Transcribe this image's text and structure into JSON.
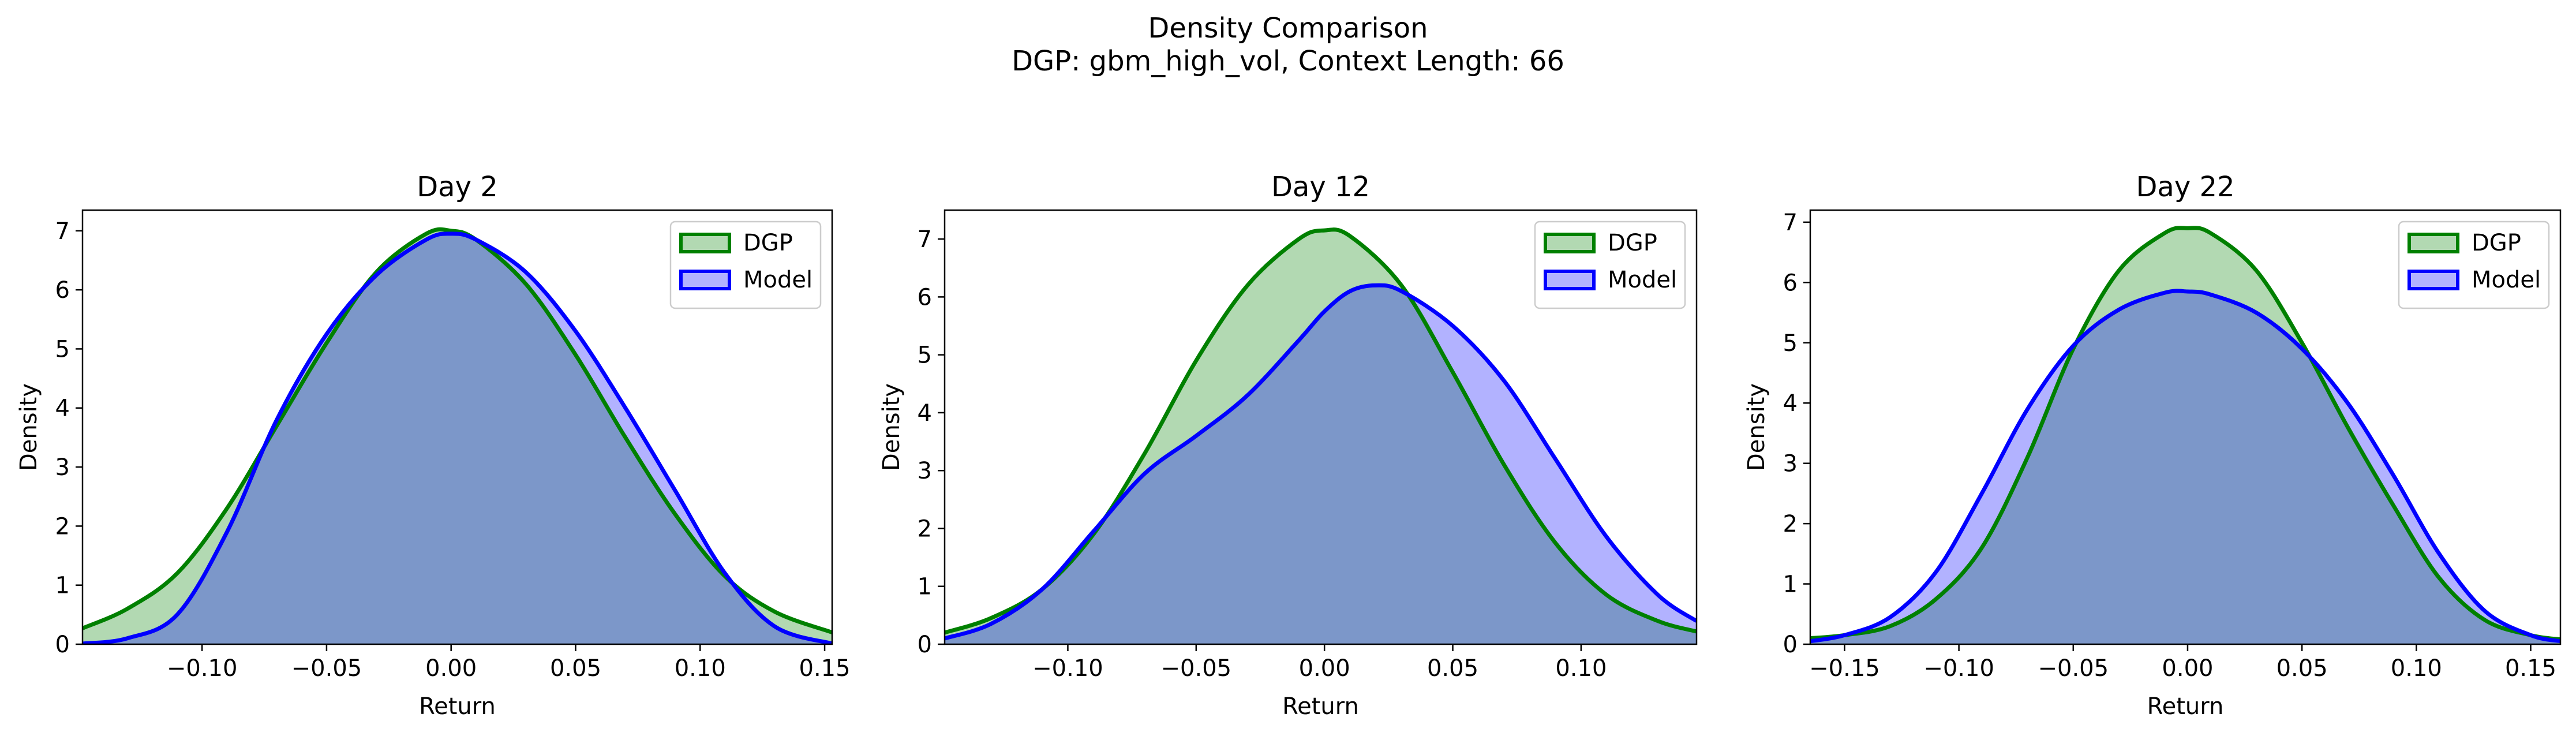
{
  "figure": {
    "title_line1": "Density Comparison",
    "title_line2": "DGP: gbm_high_vol, Context Length: 66"
  },
  "chart_data": [
    {
      "type": "area",
      "title": "Day 2",
      "xlabel": "Return",
      "ylabel": "Density",
      "xlim": [
        -0.148,
        0.153
      ],
      "ylim": [
        0,
        7.35
      ],
      "xticks": [
        -0.1,
        -0.05,
        0.0,
        0.05,
        0.1,
        0.15
      ],
      "xtick_labels": [
        "−0.10",
        "−0.05",
        "0.00",
        "0.05",
        "0.10",
        "0.15"
      ],
      "yticks": [
        0,
        1,
        2,
        3,
        4,
        5,
        6,
        7
      ],
      "ytick_labels": [
        "0",
        "1",
        "2",
        "3",
        "4",
        "5",
        "6",
        "7"
      ],
      "legend": "top-right",
      "grid": false,
      "series": [
        {
          "name": "DGP",
          "color": "#008000",
          "fill": "#008000",
          "fill_alpha": 0.3,
          "x": [
            -0.148,
            -0.13,
            -0.11,
            -0.09,
            -0.07,
            -0.05,
            -0.03,
            -0.01,
            0.0,
            0.01,
            0.03,
            0.05,
            0.07,
            0.09,
            0.11,
            0.13,
            0.153
          ],
          "y": [
            0.27,
            0.6,
            1.2,
            2.3,
            3.7,
            5.1,
            6.3,
            6.95,
            7.0,
            6.85,
            6.1,
            4.9,
            3.5,
            2.2,
            1.15,
            0.55,
            0.2
          ]
        },
        {
          "name": "Model",
          "color": "#0000ff",
          "fill": "#0000ff",
          "fill_alpha": 0.3,
          "x": [
            -0.148,
            -0.13,
            -0.11,
            -0.09,
            -0.07,
            -0.05,
            -0.03,
            -0.01,
            0.0,
            0.01,
            0.03,
            0.05,
            0.07,
            0.09,
            0.11,
            0.13,
            0.153
          ],
          "y": [
            0.01,
            0.1,
            0.5,
            1.9,
            3.8,
            5.25,
            6.25,
            6.85,
            6.95,
            6.85,
            6.3,
            5.3,
            4.0,
            2.6,
            1.2,
            0.3,
            0.01
          ]
        }
      ]
    },
    {
      "type": "area",
      "title": "Day 12",
      "xlabel": "Return",
      "ylabel": "Density",
      "xlim": [
        -0.148,
        0.145
      ],
      "ylim": [
        0,
        7.5
      ],
      "xticks": [
        -0.1,
        -0.05,
        0.0,
        0.05,
        0.1
      ],
      "xtick_labels": [
        "−0.10",
        "−0.05",
        "0.00",
        "0.05",
        "0.10"
      ],
      "yticks": [
        0,
        1,
        2,
        3,
        4,
        5,
        6,
        7
      ],
      "ytick_labels": [
        "0",
        "1",
        "2",
        "3",
        "4",
        "5",
        "6",
        "7"
      ],
      "legend": "top-right",
      "grid": false,
      "series": [
        {
          "name": "DGP",
          "color": "#008000",
          "fill": "#008000",
          "fill_alpha": 0.3,
          "x": [
            -0.148,
            -0.13,
            -0.11,
            -0.09,
            -0.07,
            -0.05,
            -0.03,
            -0.01,
            0.0,
            0.01,
            0.03,
            0.05,
            0.07,
            0.09,
            0.11,
            0.13,
            0.145
          ],
          "y": [
            0.2,
            0.45,
            0.95,
            1.9,
            3.3,
            4.9,
            6.2,
            7.0,
            7.15,
            7.05,
            6.2,
            4.7,
            3.1,
            1.75,
            0.85,
            0.4,
            0.22
          ]
        },
        {
          "name": "Model",
          "color": "#0000ff",
          "fill": "#0000ff",
          "fill_alpha": 0.3,
          "x": [
            -0.148,
            -0.13,
            -0.11,
            -0.09,
            -0.07,
            -0.05,
            -0.03,
            -0.01,
            0.0,
            0.01,
            0.02,
            0.03,
            0.05,
            0.07,
            0.09,
            0.11,
            0.13,
            0.145
          ],
          "y": [
            0.1,
            0.35,
            0.95,
            1.95,
            2.95,
            3.6,
            4.3,
            5.25,
            5.75,
            6.1,
            6.2,
            6.1,
            5.5,
            4.55,
            3.2,
            1.85,
            0.85,
            0.4
          ]
        }
      ]
    },
    {
      "type": "area",
      "title": "Day 22",
      "xlabel": "Return",
      "ylabel": "Density",
      "xlim": [
        -0.165,
        0.163
      ],
      "ylim": [
        0,
        7.2
      ],
      "xticks": [
        -0.15,
        -0.1,
        -0.05,
        0.0,
        0.05,
        0.1,
        0.15
      ],
      "xtick_labels": [
        "−0.15",
        "−0.10",
        "−0.05",
        "0.00",
        "0.05",
        "0.10",
        "0.15"
      ],
      "yticks": [
        0,
        1,
        2,
        3,
        4,
        5,
        6,
        7
      ],
      "ytick_labels": [
        "0",
        "1",
        "2",
        "3",
        "4",
        "5",
        "6",
        "7"
      ],
      "legend": "top-right",
      "grid": false,
      "series": [
        {
          "name": "DGP",
          "color": "#008000",
          "fill": "#008000",
          "fill_alpha": 0.3,
          "x": [
            -0.165,
            -0.15,
            -0.13,
            -0.11,
            -0.09,
            -0.07,
            -0.05,
            -0.03,
            -0.01,
            0.0,
            0.01,
            0.03,
            0.05,
            0.07,
            0.09,
            0.11,
            0.13,
            0.15,
            0.163
          ],
          "y": [
            0.1,
            0.15,
            0.3,
            0.75,
            1.6,
            3.1,
            4.9,
            6.2,
            6.82,
            6.9,
            6.82,
            6.2,
            5.0,
            3.6,
            2.3,
            1.1,
            0.4,
            0.15,
            0.08
          ]
        },
        {
          "name": "Model",
          "color": "#0000ff",
          "fill": "#0000ff",
          "fill_alpha": 0.3,
          "x": [
            -0.165,
            -0.15,
            -0.13,
            -0.11,
            -0.09,
            -0.07,
            -0.05,
            -0.03,
            -0.01,
            0.0,
            0.01,
            0.03,
            0.05,
            0.07,
            0.09,
            0.11,
            0.13,
            0.15,
            0.163
          ],
          "y": [
            0.05,
            0.15,
            0.45,
            1.2,
            2.5,
            3.9,
            4.95,
            5.55,
            5.83,
            5.85,
            5.8,
            5.5,
            4.9,
            4.0,
            2.8,
            1.5,
            0.55,
            0.15,
            0.05
          ]
        }
      ]
    }
  ]
}
